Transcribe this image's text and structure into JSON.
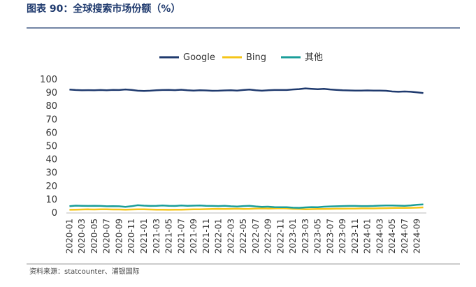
{
  "chart_data": {
    "type": "line",
    "title": "图表 90：全球搜索市场份额（%）",
    "source": "资料来源：statcounter、浦银国际",
    "categories": [
      "2020-01",
      null,
      "2020-03",
      null,
      "2020-05",
      null,
      "2020-07",
      null,
      "2020-09",
      null,
      "2020-11",
      null,
      "2021-01",
      null,
      "2021-03",
      null,
      "2021-05",
      null,
      "2021-07",
      null,
      "2021-09",
      null,
      "2021-11",
      null,
      "2022-01",
      null,
      "2022-03",
      null,
      "2022-05",
      null,
      "2022-07",
      null,
      "2022-09",
      null,
      "2022-11",
      null,
      "2023-01",
      null,
      "2023-03",
      null,
      "2023-05",
      null,
      "2023-07",
      null,
      "2023-09",
      null,
      "2023-11",
      null,
      "2024-01",
      null,
      "2024-03",
      null,
      "2024-05",
      null,
      "2024-07",
      null,
      "2024-09",
      null
    ],
    "series": [
      {
        "name": "Google",
        "color": "#1f3a6e",
        "values": [
          92.5,
          92.2,
          92.0,
          92.1,
          92.0,
          92.2,
          92.0,
          92.3,
          92.2,
          92.6,
          92.3,
          91.7,
          91.5,
          91.7,
          92.0,
          92.2,
          92.3,
          92.1,
          92.4,
          92.0,
          91.8,
          92.0,
          91.9,
          91.6,
          91.7,
          91.9,
          92.0,
          91.8,
          92.2,
          92.5,
          92.0,
          91.7,
          92.0,
          92.2,
          92.2,
          92.2,
          92.6,
          92.9,
          93.4,
          93.1,
          92.8,
          93.1,
          92.6,
          92.3,
          92.0,
          91.9,
          91.8,
          91.8,
          91.9,
          91.8,
          91.8,
          91.6,
          91.1,
          90.9,
          91.1,
          90.9,
          90.4,
          89.9
        ]
      },
      {
        "name": "Bing",
        "color": "#f5c518",
        "values": [
          2.4,
          2.5,
          2.6,
          2.7,
          2.6,
          2.7,
          2.7,
          2.6,
          2.6,
          2.5,
          2.6,
          2.7,
          2.7,
          2.6,
          2.5,
          2.5,
          2.4,
          2.5,
          2.5,
          2.6,
          2.7,
          2.8,
          2.9,
          3.0,
          3.1,
          3.0,
          3.1,
          3.2,
          3.0,
          3.1,
          3.3,
          3.4,
          3.3,
          3.4,
          3.5,
          3.4,
          3.1,
          3.0,
          2.8,
          2.9,
          3.0,
          3.0,
          3.1,
          3.2,
          3.2,
          3.3,
          3.3,
          3.4,
          3.4,
          3.4,
          3.5,
          3.6,
          3.7,
          3.8,
          3.8,
          3.9,
          4.0,
          4.2
        ]
      },
      {
        "name": "其他",
        "color": "#1a9e99",
        "values": [
          5.1,
          5.5,
          5.4,
          5.3,
          5.4,
          5.3,
          5.0,
          5.1,
          5.0,
          4.6,
          5.1,
          5.8,
          5.5,
          5.3,
          5.4,
          5.6,
          5.4,
          5.3,
          5.6,
          5.4,
          5.5,
          5.6,
          5.4,
          5.3,
          5.2,
          5.4,
          5.0,
          4.8,
          5.2,
          5.4,
          4.9,
          4.6,
          4.7,
          4.4,
          4.3,
          4.3,
          4.0,
          3.9,
          4.2,
          4.4,
          4.3,
          4.7,
          4.9,
          5.0,
          5.2,
          5.3,
          5.3,
          5.2,
          5.2,
          5.3,
          5.5,
          5.6,
          5.6,
          5.5,
          5.4,
          5.7,
          6.1,
          6.4
        ]
      }
    ],
    "ylim": [
      0,
      100
    ],
    "yticks": [
      0,
      10,
      20,
      30,
      40,
      50,
      60,
      70,
      80,
      90,
      100
    ],
    "grid": false,
    "legend": "top"
  }
}
